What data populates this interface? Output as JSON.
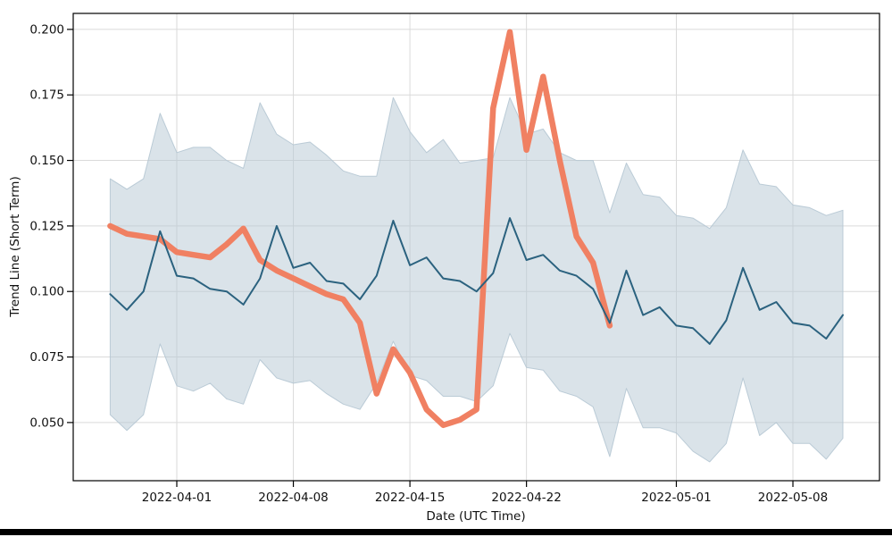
{
  "figure": {
    "background": "#ffffff",
    "bottom_bar_color": "#000000"
  },
  "chart_data": {
    "type": "line",
    "title": "",
    "xlabel": "Date (UTC Time)",
    "ylabel": "Trend Line (Short Term)",
    "grid": true,
    "grid_color": "#dadada",
    "legend": "none",
    "ylim": [
      0.0278,
      0.2061
    ],
    "xlim_index": [
      -2.22,
      46.2
    ],
    "x_dates": [
      "2022-03-28",
      "2022-03-29",
      "2022-03-30",
      "2022-03-31",
      "2022-04-01",
      "2022-04-02",
      "2022-04-03",
      "2022-04-04",
      "2022-04-05",
      "2022-04-06",
      "2022-04-07",
      "2022-04-08",
      "2022-04-09",
      "2022-04-10",
      "2022-04-11",
      "2022-04-12",
      "2022-04-13",
      "2022-04-14",
      "2022-04-15",
      "2022-04-16",
      "2022-04-17",
      "2022-04-18",
      "2022-04-19",
      "2022-04-20",
      "2022-04-21",
      "2022-04-22",
      "2022-04-23",
      "2022-04-24",
      "2022-04-25",
      "2022-04-26",
      "2022-04-27",
      "2022-04-28",
      "2022-04-29",
      "2022-04-30",
      "2022-05-01",
      "2022-05-02",
      "2022-05-03",
      "2022-05-04",
      "2022-05-05",
      "2022-05-06",
      "2022-05-07",
      "2022-05-08",
      "2022-05-09",
      "2022-05-10",
      "2022-05-11"
    ],
    "band": {
      "name": "prediction-range",
      "fill": "#b5c7d3",
      "fill_opacity": 0.5,
      "edge": "#b5c7d3",
      "edge_opacity": 0.9,
      "upper": [
        0.143,
        0.139,
        0.143,
        0.168,
        0.153,
        0.155,
        0.155,
        0.15,
        0.147,
        0.172,
        0.16,
        0.156,
        0.157,
        0.152,
        0.146,
        0.144,
        0.144,
        0.174,
        0.161,
        0.153,
        0.158,
        0.149,
        0.15,
        0.151,
        0.174,
        0.16,
        0.162,
        0.153,
        0.15,
        0.15,
        0.13,
        0.149,
        0.137,
        0.136,
        0.129,
        0.128,
        0.124,
        0.132,
        0.154,
        0.141,
        0.14,
        0.133,
        0.132,
        0.129,
        0.131
      ],
      "lower": [
        0.053,
        0.047,
        0.053,
        0.08,
        0.064,
        0.062,
        0.065,
        0.059,
        0.057,
        0.074,
        0.067,
        0.065,
        0.066,
        0.061,
        0.057,
        0.055,
        0.065,
        0.081,
        0.068,
        0.066,
        0.06,
        0.06,
        0.058,
        0.064,
        0.084,
        0.071,
        0.07,
        0.062,
        0.06,
        0.056,
        0.037,
        0.063,
        0.048,
        0.048,
        0.046,
        0.039,
        0.035,
        0.042,
        0.067,
        0.045,
        0.05,
        0.042,
        0.042,
        0.036,
        0.044
      ]
    },
    "series": [
      {
        "name": "trend-line",
        "color": "#f08062",
        "width": 6.5,
        "values": [
          0.125,
          0.122,
          0.121,
          0.12,
          0.115,
          0.114,
          0.113,
          0.118,
          0.124,
          0.112,
          0.108,
          0.105,
          0.102,
          0.099,
          0.097,
          0.088,
          0.061,
          0.078,
          0.069,
          0.055,
          0.049,
          0.051,
          0.055,
          0.17,
          0.199,
          0.154,
          0.182,
          0.15,
          0.121,
          0.111,
          0.087,
          null,
          null,
          null,
          null,
          null,
          null,
          null,
          null,
          null,
          null,
          null,
          null,
          null,
          null
        ]
      },
      {
        "name": "short-term-value",
        "color": "#2b627f",
        "width": 2,
        "values": [
          0.099,
          0.093,
          0.1,
          0.123,
          0.106,
          0.105,
          0.101,
          0.1,
          0.095,
          0.105,
          0.125,
          0.109,
          0.111,
          0.104,
          0.103,
          0.097,
          0.106,
          0.127,
          0.11,
          0.113,
          0.105,
          0.104,
          0.1,
          0.107,
          0.128,
          0.112,
          0.114,
          0.108,
          0.106,
          0.101,
          0.088,
          0.108,
          0.091,
          0.094,
          0.087,
          0.086,
          0.08,
          0.089,
          0.109,
          0.093,
          0.096,
          0.088,
          0.087,
          0.082,
          0.091
        ]
      }
    ],
    "yticks": [
      {
        "label": "0.050",
        "value": 0.05
      },
      {
        "label": "0.075",
        "value": 0.075
      },
      {
        "label": "0.100",
        "value": 0.1
      },
      {
        "label": "0.125",
        "value": 0.125
      },
      {
        "label": "0.150",
        "value": 0.15
      },
      {
        "label": "0.175",
        "value": 0.175
      },
      {
        "label": "0.200",
        "value": 0.2
      }
    ],
    "xticks": [
      {
        "label": "2022-04-01",
        "index": 4
      },
      {
        "label": "2022-04-08",
        "index": 11
      },
      {
        "label": "2022-04-15",
        "index": 18
      },
      {
        "label": "2022-04-22",
        "index": 25
      },
      {
        "label": "2022-05-01",
        "index": 34
      },
      {
        "label": "2022-05-08",
        "index": 41
      }
    ]
  }
}
